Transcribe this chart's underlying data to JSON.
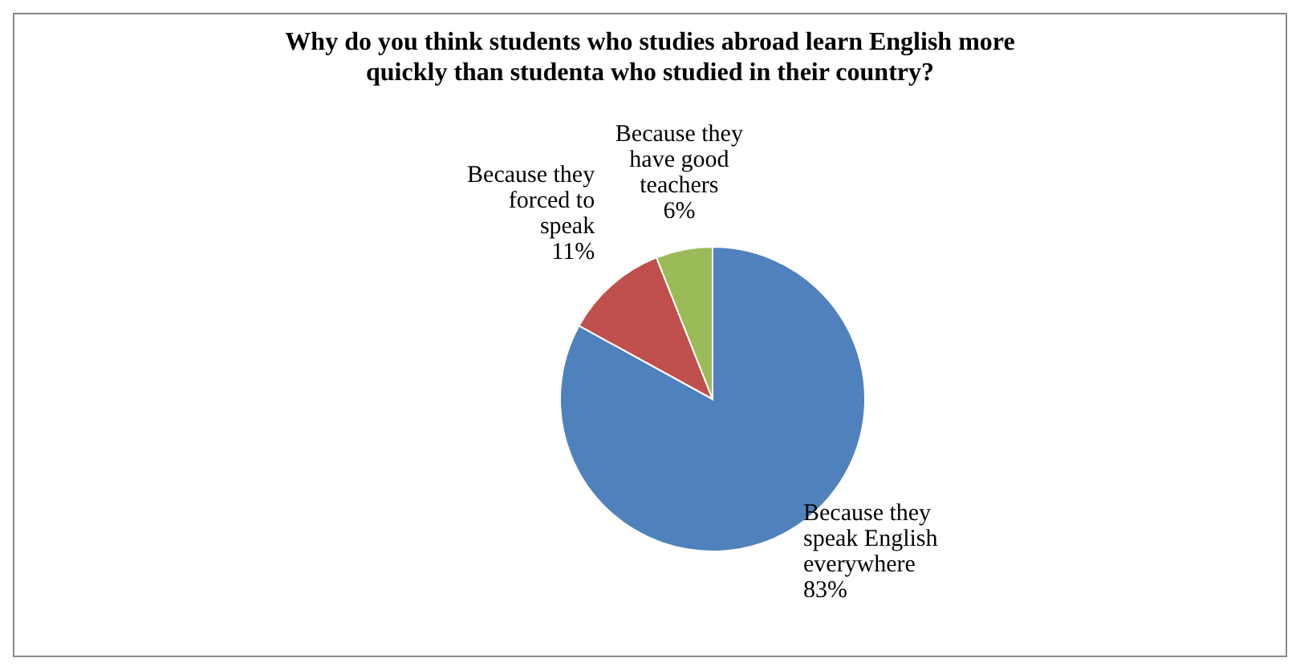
{
  "chart_data": {
    "type": "pie",
    "title": "Why do you think students who studies abroad learn English more quickly than studenta who studied in their country?",
    "categories": [
      "Because they speak English everywhere",
      "Because they forced to speak",
      "Because they have good teachers"
    ],
    "values": [
      83,
      11,
      6
    ],
    "colors": [
      "#4f81bd",
      "#c0504d",
      "#9bbb59"
    ],
    "value_labels": [
      "83%",
      "11%",
      "6%"
    ]
  }
}
